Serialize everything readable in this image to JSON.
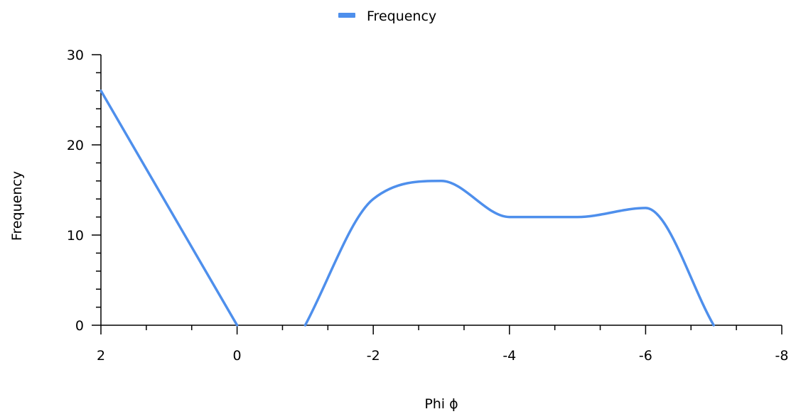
{
  "chart_data": {
    "type": "line",
    "title": "",
    "xlabel": "Phi ϕ",
    "ylabel": "Frequency",
    "xlim": [
      2,
      -8
    ],
    "ylim": [
      0,
      30
    ],
    "x_ticks": [
      2,
      0,
      -2,
      -4,
      -6,
      -8
    ],
    "x_tick_labels": [
      "2",
      "0",
      "-2",
      "-4",
      "-6",
      "-8"
    ],
    "y_ticks": [
      0,
      10,
      20,
      30
    ],
    "y_tick_labels": [
      "0",
      "10",
      "20",
      "30"
    ],
    "grid": false,
    "legend_position": "top-center",
    "series": [
      {
        "name": "Frequency",
        "color": "#4e8fec",
        "segments": [
          [
            [
              2,
              26
            ],
            [
              1,
              13
            ],
            [
              0,
              0
            ]
          ],
          [
            [
              -1,
              0
            ],
            [
              -2,
              14
            ],
            [
              -3,
              16
            ],
            [
              -4,
              12
            ],
            [
              -5,
              12
            ],
            [
              -6,
              13
            ],
            [
              -7,
              0
            ]
          ]
        ]
      }
    ]
  }
}
